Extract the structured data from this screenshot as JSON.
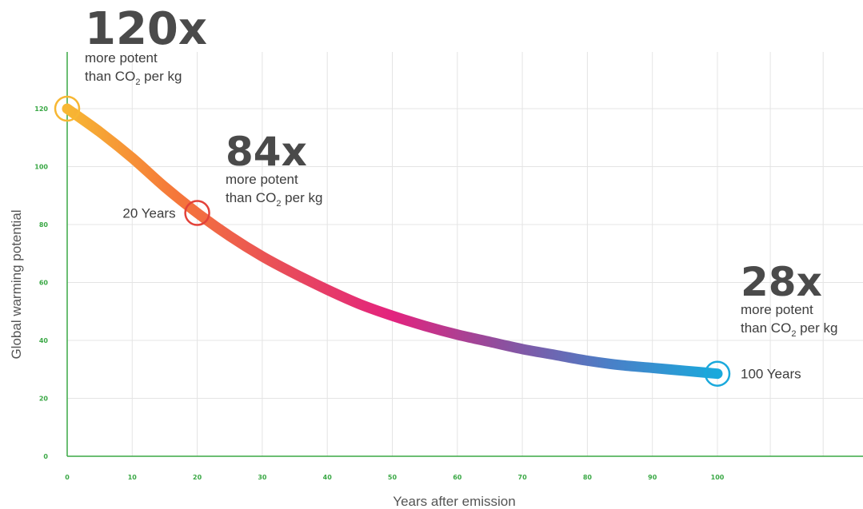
{
  "chart_data": {
    "type": "line",
    "xlabel": "Years after emission",
    "ylabel": "Global warming potential",
    "xlim": [
      0,
      100
    ],
    "ylim": [
      0,
      120
    ],
    "x_ticks": [
      "0",
      "10",
      "20",
      "30",
      "40",
      "50",
      "60",
      "70",
      "80",
      "90",
      "100"
    ],
    "y_ticks": [
      "0",
      "20",
      "40",
      "60",
      "80",
      "100",
      "120"
    ],
    "grid": true,
    "gradient_colors": [
      "#f7b733",
      "#f5773a",
      "#e84c5a",
      "#e3237e",
      "#8e4f9e",
      "#4a7fc7",
      "#1aa9dc"
    ],
    "axis_color": "#3aa845",
    "series": [
      {
        "x": [
          0,
          5,
          10,
          15,
          20,
          25,
          30,
          35,
          40,
          45,
          50,
          55,
          60,
          65,
          70,
          75,
          80,
          85,
          90,
          95,
          100
        ],
        "values": [
          120,
          112,
          103,
          93,
          84,
          76,
          69,
          63,
          57.5,
          52.5,
          48.5,
          45,
          42,
          39.5,
          37,
          35,
          33,
          31.5,
          30.5,
          29.5,
          28.5
        ]
      }
    ],
    "markers": [
      {
        "x": 0,
        "y": 120,
        "color": "#f7b733",
        "label": ""
      },
      {
        "x": 20,
        "y": 84,
        "color": "#e3423a",
        "label": "20 Years"
      },
      {
        "x": 100,
        "y": 28.5,
        "color": "#1aa9dc",
        "label": "100 Years"
      }
    ],
    "annotations": [
      {
        "big": "120x",
        "line1": "more potent",
        "line2_pre": "than CO",
        "line2_sub": "2",
        "line2_post": " per kg"
      },
      {
        "big": "84x",
        "line1": "more potent",
        "line2_pre": "than CO",
        "line2_sub": "2",
        "line2_post": " per kg"
      },
      {
        "big": "28x",
        "line1": "more potent",
        "line2_pre": "than CO",
        "line2_sub": "2",
        "line2_post": " per kg"
      }
    ]
  }
}
